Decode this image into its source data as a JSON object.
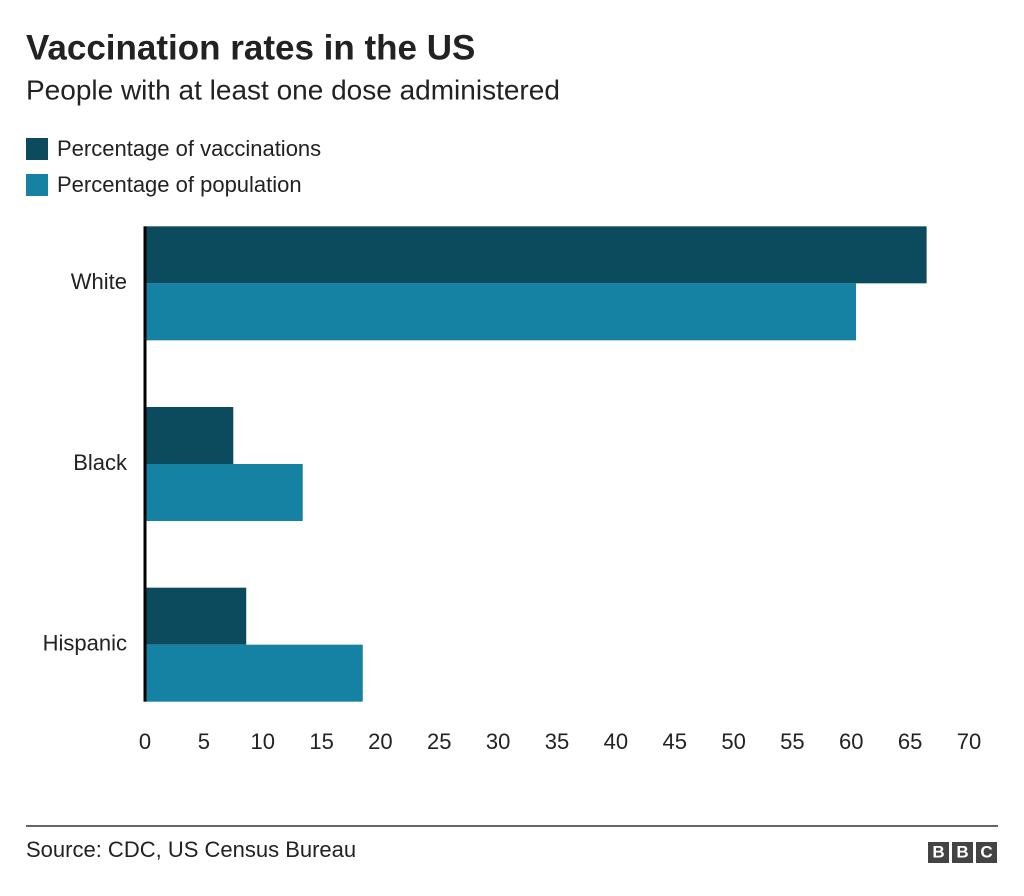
{
  "chart_data": {
    "type": "hbar",
    "title": "Vaccination rates in the US",
    "subtitle": "People with at least one dose administered",
    "categories": [
      "White",
      "Black",
      "Hispanic"
    ],
    "series": [
      {
        "name": "Percentage of vaccinations",
        "color": "#0c4a5e",
        "values": [
          66.4,
          7.5,
          8.6
        ]
      },
      {
        "name": "Percentage of population",
        "color": "#1581a3",
        "values": [
          60.4,
          13.4,
          18.5
        ]
      }
    ],
    "xlim": [
      0,
      70
    ],
    "xticks": [
      0,
      5,
      10,
      15,
      20,
      25,
      30,
      35,
      40,
      45,
      50,
      55,
      60,
      65,
      70
    ],
    "source": "Source: CDC, US Census Bureau",
    "logo": [
      "B",
      "B",
      "C"
    ]
  }
}
